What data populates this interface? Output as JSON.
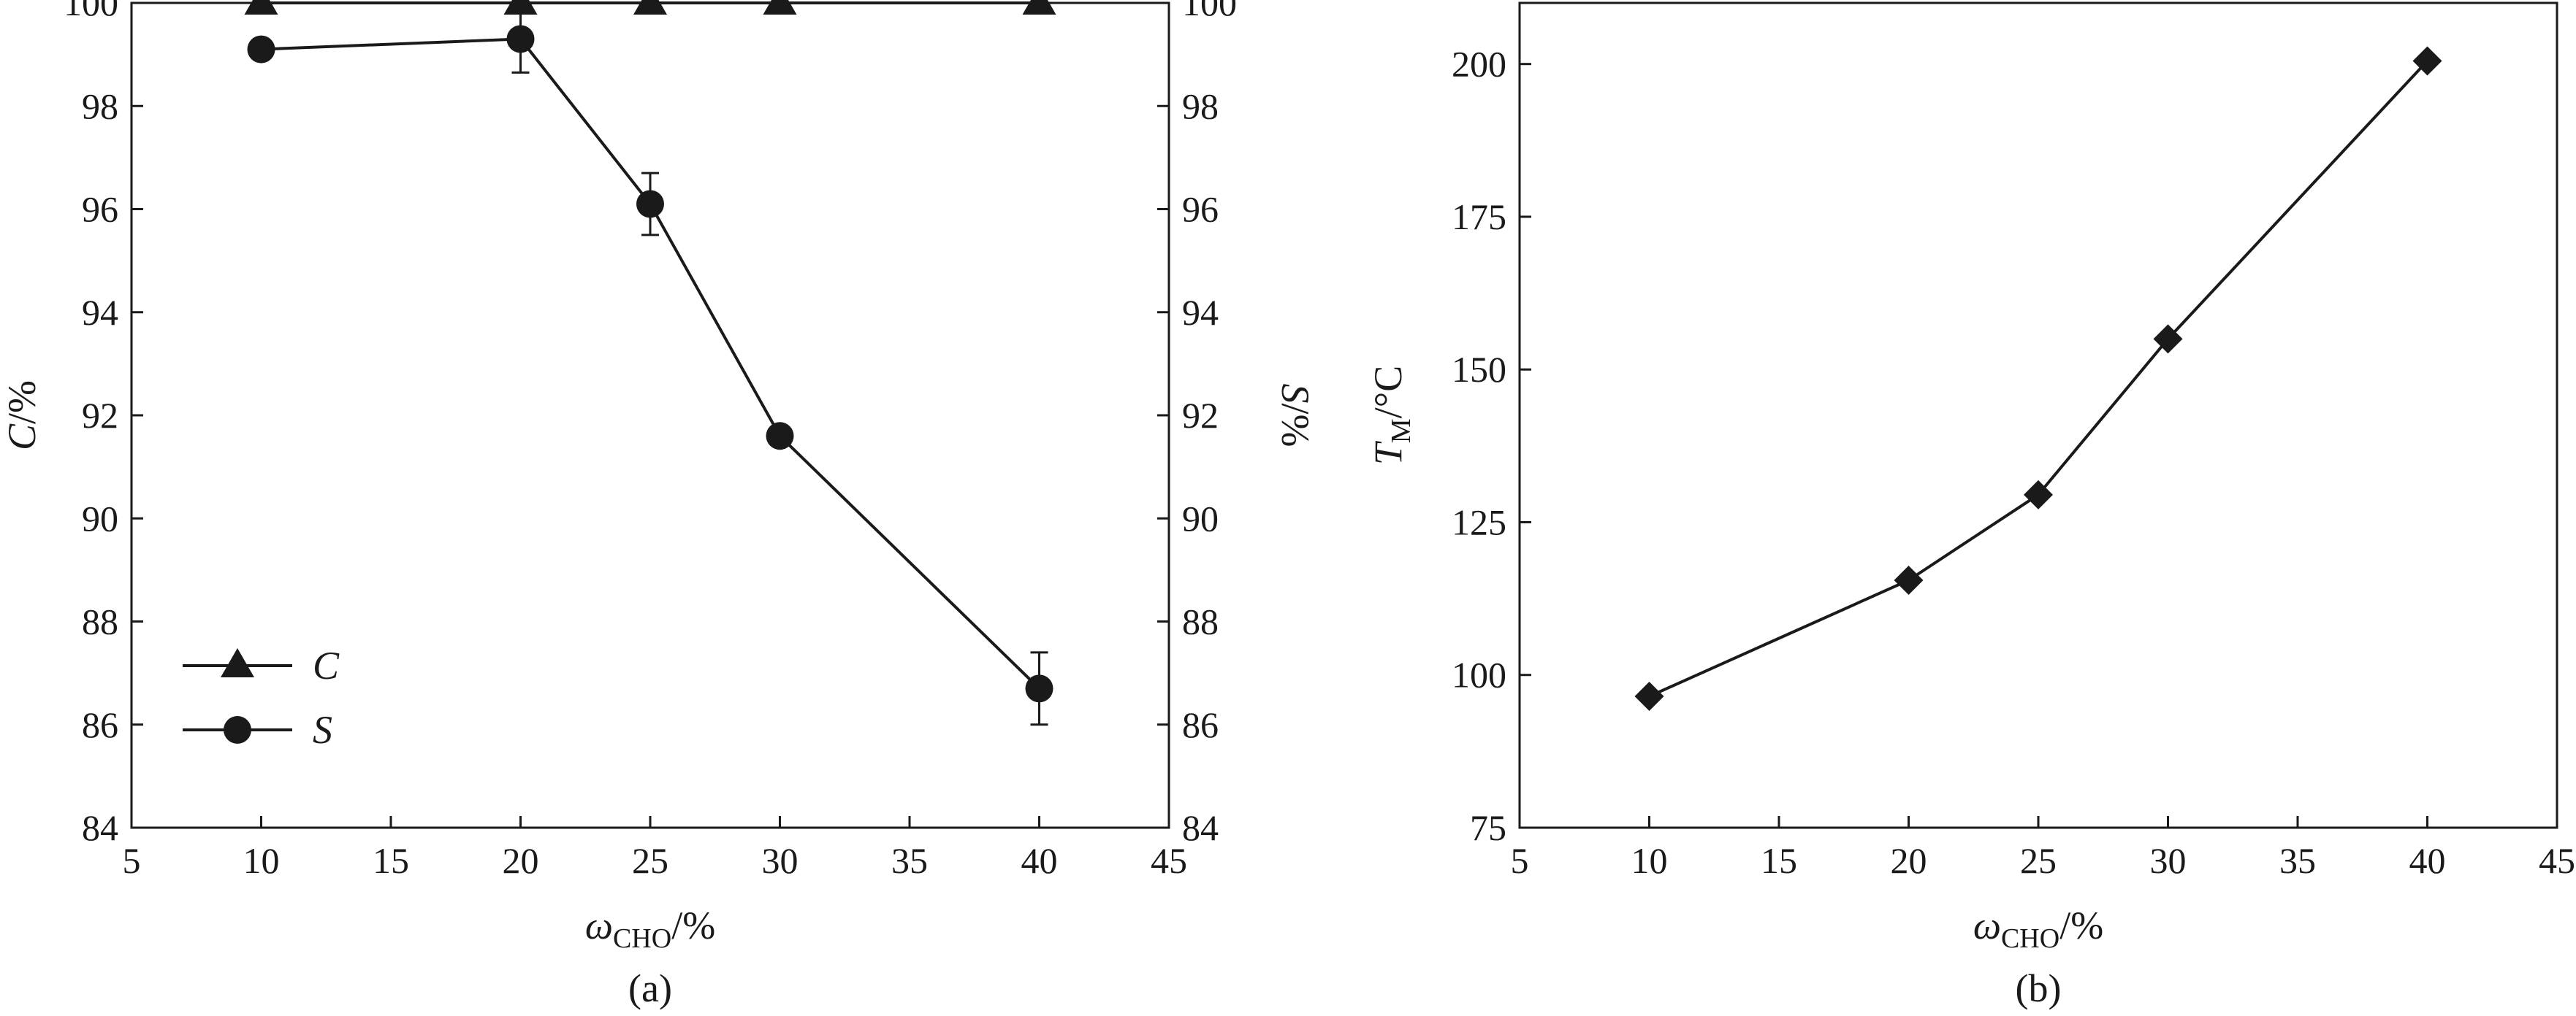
{
  "chart_data": [
    {
      "type": "line",
      "panel_label": "(a)",
      "xlabel": {
        "main": "ω",
        "sub": "CHO",
        "unit": "/%"
      },
      "ylabel_left": {
        "var": "C",
        "unit": "/%"
      },
      "ylabel_right": {
        "var": "S",
        "unit": "/%"
      },
      "xlim": [
        5,
        45
      ],
      "ylim": [
        84,
        100
      ],
      "ylim_right": [
        84,
        100
      ],
      "xticks": [
        5,
        10,
        15,
        20,
        25,
        30,
        35,
        40,
        45
      ],
      "yticks": [
        84,
        86,
        88,
        90,
        92,
        94,
        96,
        98,
        100
      ],
      "grid": false,
      "legend_position": "lower-left",
      "series": [
        {
          "name": "C",
          "marker": "triangle",
          "axis": "left",
          "points": [
            {
              "x": 10,
              "y": 100
            },
            {
              "x": 20,
              "y": 100
            },
            {
              "x": 25,
              "y": 100
            },
            {
              "x": 30,
              "y": 100
            },
            {
              "x": 40,
              "y": 100
            }
          ]
        },
        {
          "name": "S",
          "marker": "circle",
          "axis": "right",
          "points": [
            {
              "x": 10,
              "y": 99.1,
              "err": 0
            },
            {
              "x": 20,
              "y": 99.3,
              "err": 0.65
            },
            {
              "x": 25,
              "y": 96.1,
              "err": 0.6
            },
            {
              "x": 30,
              "y": 91.6,
              "err": 0
            },
            {
              "x": 40,
              "y": 86.7,
              "err": 0.7
            }
          ]
        }
      ]
    },
    {
      "type": "line",
      "panel_label": "(b)",
      "xlabel": {
        "main": "ω",
        "sub": "CHO",
        "unit": "/%"
      },
      "ylabel_left": {
        "main": "T",
        "sub": "M",
        "unit": "/°C"
      },
      "xlim": [
        5,
        45
      ],
      "ylim": [
        75,
        210
      ],
      "xticks": [
        5,
        10,
        15,
        20,
        25,
        30,
        35,
        40,
        45
      ],
      "yticks": [
        75,
        100,
        125,
        150,
        175,
        200
      ],
      "grid": false,
      "series": [
        {
          "marker": "diamond",
          "points": [
            {
              "x": 10,
              "y": 96.5
            },
            {
              "x": 20,
              "y": 115.5
            },
            {
              "x": 25,
              "y": 129.5
            },
            {
              "x": 30,
              "y": 155
            },
            {
              "x": 40,
              "y": 200.5
            }
          ]
        }
      ]
    }
  ]
}
